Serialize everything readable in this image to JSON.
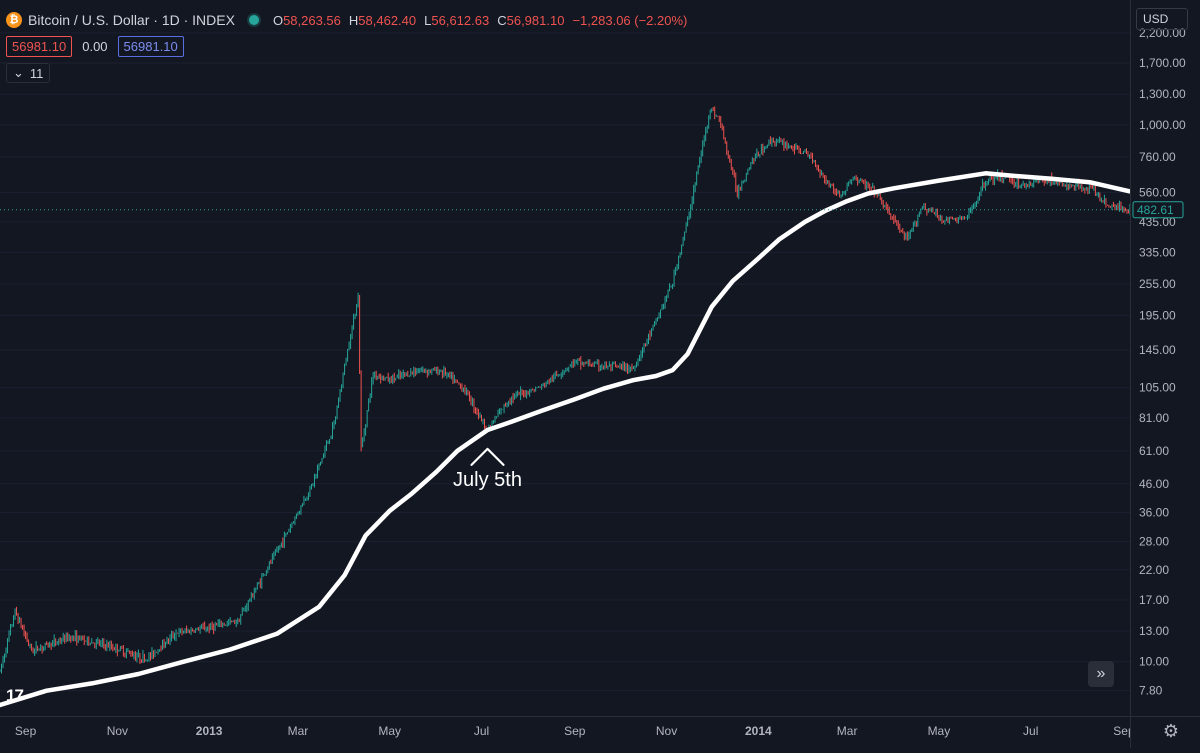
{
  "legend": {
    "logo_glyph": "₿",
    "symbol": "Bitcoin / U.S. Dollar · 1D · INDEX",
    "open_key": "O",
    "open": "58,263.56",
    "high_key": "H",
    "high": "58,462.40",
    "low_key": "L",
    "low": "56,612.63",
    "close_key": "C",
    "close": "56,981.10",
    "change": "−1,283.06 (−2.20%)"
  },
  "indicator": {
    "value_a": "56981.10",
    "value_b": "0.00",
    "value_c": "56981.10"
  },
  "collapse": {
    "chevron": "⌄",
    "count": "11"
  },
  "currency": "USD",
  "current_price_label": "482.61",
  "annotation": "July 5th",
  "scroll_glyph": "»",
  "gear_glyph": "⚙",
  "tv_logo": "17",
  "colors": {
    "bg": "#131722",
    "up": "#26a69a",
    "down": "#ef5350",
    "ma": "#ffffff",
    "text": "#d1d4dc",
    "grid": "#2a2e39"
  },
  "chart_data": {
    "type": "candlestick",
    "title": "Bitcoin / U.S. Dollar · 1D · INDEX",
    "y_scale": "log",
    "ylim": [
      7.2,
      2500
    ],
    "y_ticks": [
      "2,200.00",
      "1,700.00",
      "1,300.00",
      "1,000.00",
      "760.00",
      "560.00",
      "435.00",
      "335.00",
      "255.00",
      "195.00",
      "145.00",
      "105.00",
      "81.00",
      "61.00",
      "46.00",
      "36.00",
      "28.00",
      "22.00",
      "17.00",
      "13.00",
      "10.00",
      "7.80"
    ],
    "x_ticks": [
      "Sep",
      "Nov",
      "2013",
      "Mar",
      "May",
      "Jul",
      "Sep",
      "Nov",
      "2014",
      "Mar",
      "May",
      "Jul",
      "Sep"
    ],
    "x_range": [
      "2012-08-15",
      "2014-09-05"
    ],
    "price_path": [
      [
        "2012-08-15",
        9.2
      ],
      [
        "2012-08-25",
        15.4
      ],
      [
        "2012-09-05",
        11.0
      ],
      [
        "2012-10-01",
        12.4
      ],
      [
        "2012-11-01",
        11.2
      ],
      [
        "2012-11-20",
        10.2
      ],
      [
        "2012-12-10",
        12.8
      ],
      [
        "2013-01-01",
        13.4
      ],
      [
        "2013-01-20",
        14.2
      ],
      [
        "2013-02-05",
        20.5
      ],
      [
        "2013-02-20",
        29.0
      ],
      [
        "2013-03-10",
        45.0
      ],
      [
        "2013-03-25",
        76.0
      ],
      [
        "2013-04-03",
        145.0
      ],
      [
        "2013-04-10",
        230.0
      ],
      [
        "2013-04-12",
        62.0
      ],
      [
        "2013-04-20",
        118.0
      ],
      [
        "2013-05-01",
        112.0
      ],
      [
        "2013-05-20",
        122.0
      ],
      [
        "2013-06-05",
        121.0
      ],
      [
        "2013-06-20",
        103.0
      ],
      [
        "2013-07-05",
        73.0
      ],
      [
        "2013-07-20",
        96.0
      ],
      [
        "2013-08-10",
        106.0
      ],
      [
        "2013-09-01",
        131.0
      ],
      [
        "2013-09-20",
        126.0
      ],
      [
        "2013-10-10",
        124.0
      ],
      [
        "2013-10-25",
        185.0
      ],
      [
        "2013-11-05",
        260.0
      ],
      [
        "2013-11-15",
        440.0
      ],
      [
        "2013-11-25",
        840.0
      ],
      [
        "2013-11-30",
        1150.0
      ],
      [
        "2013-12-06",
        1050.0
      ],
      [
        "2013-12-18",
        560.0
      ],
      [
        "2013-12-28",
        740.0
      ],
      [
        "2014-01-10",
        880.0
      ],
      [
        "2014-01-25",
        820.0
      ],
      [
        "2014-02-05",
        760.0
      ],
      [
        "2014-02-15",
        620.0
      ],
      [
        "2014-02-25",
        540.0
      ],
      [
        "2014-03-05",
        640.0
      ],
      [
        "2014-03-20",
        560.0
      ],
      [
        "2014-04-01",
        440.0
      ],
      [
        "2014-04-10",
        370.0
      ],
      [
        "2014-04-20",
        500.0
      ],
      [
        "2014-05-05",
        440.0
      ],
      [
        "2014-05-20",
        450.0
      ],
      [
        "2014-06-01",
        620.0
      ],
      [
        "2014-06-15",
        640.0
      ],
      [
        "2014-06-25",
        590.0
      ],
      [
        "2014-07-10",
        630.0
      ],
      [
        "2014-07-25",
        590.0
      ],
      [
        "2014-08-10",
        585.0
      ],
      [
        "2014-08-20",
        505.0
      ],
      [
        "2014-09-05",
        482.61
      ]
    ],
    "moving_average": {
      "color": "white",
      "points": [
        [
          "2012-08-15",
          6.9
        ],
        [
          "2012-09-15",
          7.8
        ],
        [
          "2012-10-15",
          8.3
        ],
        [
          "2012-11-15",
          9.0
        ],
        [
          "2012-12-15",
          10.0
        ],
        [
          "2013-01-15",
          11.1
        ],
        [
          "2013-02-15",
          12.7
        ],
        [
          "2013-03-15",
          16.0
        ],
        [
          "2013-04-01",
          21.0
        ],
        [
          "2013-04-15",
          29.5
        ],
        [
          "2013-05-01",
          36.5
        ],
        [
          "2013-05-15",
          42.0
        ],
        [
          "2013-06-01",
          51.0
        ],
        [
          "2013-06-15",
          61.0
        ],
        [
          "2013-07-05",
          73.0
        ],
        [
          "2013-07-20",
          78.0
        ],
        [
          "2013-08-10",
          86.0
        ],
        [
          "2013-09-01",
          95.0
        ],
        [
          "2013-09-20",
          104.0
        ],
        [
          "2013-10-10",
          112.0
        ],
        [
          "2013-10-25",
          116.0
        ],
        [
          "2013-11-05",
          122.0
        ],
        [
          "2013-11-15",
          140.0
        ],
        [
          "2013-12-01",
          210.0
        ],
        [
          "2013-12-15",
          262.0
        ],
        [
          "2014-01-01",
          318.0
        ],
        [
          "2014-01-15",
          375.0
        ],
        [
          "2014-02-01",
          435.0
        ],
        [
          "2014-02-15",
          480.0
        ],
        [
          "2014-03-01",
          520.0
        ],
        [
          "2014-03-15",
          555.0
        ],
        [
          "2014-04-01",
          580.0
        ],
        [
          "2014-05-01",
          620.0
        ],
        [
          "2014-06-01",
          660.0
        ],
        [
          "2014-06-20",
          645.0
        ],
        [
          "2014-07-15",
          630.0
        ],
        [
          "2014-08-10",
          610.0
        ],
        [
          "2014-09-05",
          565.0
        ]
      ]
    },
    "annotations": [
      {
        "text": "July 5th",
        "date": "2013-07-05",
        "value": 61.0
      }
    ]
  }
}
